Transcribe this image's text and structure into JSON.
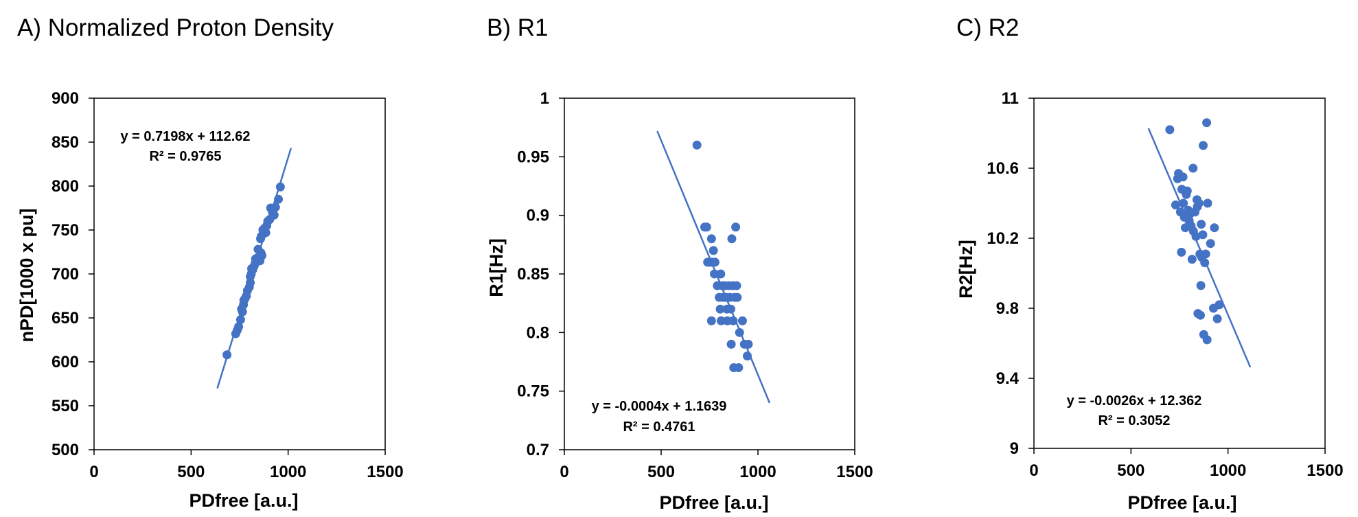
{
  "chart_data": [
    {
      "type": "scatter",
      "title": "A) Normalized Proton Density",
      "xlabel": "PDfree [a.u.]",
      "ylabel": "nPD[1000 x pu]",
      "xlim": [
        0,
        1500
      ],
      "ylim": [
        500,
        900
      ],
      "xticks": [
        "0",
        "500",
        "1000",
        "1500"
      ],
      "yticks": [
        "500",
        "550",
        "600",
        "650",
        "700",
        "750",
        "800",
        "850",
        "900"
      ],
      "marker_color": "#4472C4",
      "trendline": {
        "slope": 0.7198,
        "intercept": 112.62,
        "x_range": [
          635,
          1015
        ]
      },
      "equation": "y = 0.7198x + 112.62",
      "r_squared": "R² = 0.9765",
      "grid": false,
      "points": [
        [
          685,
          608
        ],
        [
          730,
          632
        ],
        [
          738,
          636
        ],
        [
          745,
          640
        ],
        [
          755,
          648
        ],
        [
          760,
          660
        ],
        [
          765,
          657
        ],
        [
          770,
          665
        ],
        [
          772,
          670
        ],
        [
          778,
          672
        ],
        [
          785,
          675
        ],
        [
          790,
          681
        ],
        [
          800,
          685
        ],
        [
          805,
          690
        ],
        [
          805,
          697
        ],
        [
          810,
          700
        ],
        [
          812,
          706
        ],
        [
          818,
          705
        ],
        [
          825,
          709
        ],
        [
          830,
          712
        ],
        [
          832,
          717
        ],
        [
          838,
          718
        ],
        [
          845,
          728
        ],
        [
          850,
          718
        ],
        [
          855,
          715
        ],
        [
          860,
          724
        ],
        [
          865,
          721
        ],
        [
          858,
          740
        ],
        [
          862,
          743
        ],
        [
          870,
          750
        ],
        [
          878,
          752
        ],
        [
          885,
          747
        ],
        [
          890,
          755
        ],
        [
          895,
          760
        ],
        [
          905,
          762
        ],
        [
          910,
          775
        ],
        [
          920,
          770
        ],
        [
          928,
          767
        ],
        [
          935,
          776
        ],
        [
          950,
          785
        ],
        [
          960,
          799
        ]
      ]
    },
    {
      "type": "scatter",
      "title": "B) R1",
      "xlabel": "PDfree [a.u.]",
      "ylabel": "R1[Hz]",
      "xlim": [
        0,
        1500
      ],
      "ylim": [
        0.7,
        1
      ],
      "xticks": [
        "0",
        "500",
        "1000",
        "1500"
      ],
      "yticks": [
        "0.7",
        "0.75",
        "0.8",
        "0.85",
        "0.9",
        "0.95",
        "1"
      ],
      "marker_color": "#4472C4",
      "trendline": {
        "slope": -0.0004,
        "intercept": 1.1639,
        "x_range": [
          480,
          1060
        ]
      },
      "equation": "y = -0.0004x + 1.1639",
      "r_squared": "R² = 0.4761",
      "grid": false,
      "points": [
        [
          685,
          0.96
        ],
        [
          725,
          0.89
        ],
        [
          735,
          0.89
        ],
        [
          740,
          0.86
        ],
        [
          750,
          0.86
        ],
        [
          760,
          0.88
        ],
        [
          762,
          0.86
        ],
        [
          770,
          0.87
        ],
        [
          775,
          0.85
        ],
        [
          778,
          0.86
        ],
        [
          760,
          0.81
        ],
        [
          790,
          0.84
        ],
        [
          800,
          0.83
        ],
        [
          805,
          0.82
        ],
        [
          808,
          0.85
        ],
        [
          810,
          0.81
        ],
        [
          815,
          0.84
        ],
        [
          820,
          0.83
        ],
        [
          830,
          0.84
        ],
        [
          835,
          0.83
        ],
        [
          840,
          0.82
        ],
        [
          842,
          0.81
        ],
        [
          850,
          0.84
        ],
        [
          855,
          0.83
        ],
        [
          860,
          0.82
        ],
        [
          862,
          0.79
        ],
        [
          865,
          0.88
        ],
        [
          870,
          0.84
        ],
        [
          872,
          0.81
        ],
        [
          875,
          0.77
        ],
        [
          880,
          0.83
        ],
        [
          885,
          0.89
        ],
        [
          890,
          0.84
        ],
        [
          893,
          0.83
        ],
        [
          900,
          0.77
        ],
        [
          905,
          0.8
        ],
        [
          920,
          0.81
        ],
        [
          930,
          0.79
        ],
        [
          945,
          0.78
        ],
        [
          950,
          0.79
        ]
      ]
    },
    {
      "type": "scatter",
      "title": "C) R2",
      "xlabel": "PDfree [a.u.]",
      "ylabel": "R2[Hz]",
      "xlim": [
        0,
        1500
      ],
      "ylim": [
        9,
        11
      ],
      "xticks": [
        "0",
        "500",
        "1000",
        "1500"
      ],
      "yticks": [
        "9",
        "9.4",
        "9.8",
        "10.2",
        "10.6",
        "11"
      ],
      "marker_color": "#4472C4",
      "trendline": {
        "slope": -0.0026,
        "intercept": 12.362,
        "x_range": [
          590,
          1115
        ]
      },
      "equation": "y = -0.0026x + 12.362",
      "r_squared": "R² = 0.3052",
      "grid": false,
      "points": [
        [
          700,
          10.82
        ],
        [
          730,
          10.39
        ],
        [
          740,
          10.54
        ],
        [
          745,
          10.57
        ],
        [
          755,
          10.35
        ],
        [
          760,
          10.12
        ],
        [
          762,
          10.48
        ],
        [
          768,
          10.55
        ],
        [
          770,
          10.4
        ],
        [
          775,
          10.32
        ],
        [
          780,
          10.26
        ],
        [
          785,
          10.45
        ],
        [
          790,
          10.47
        ],
        [
          795,
          10.36
        ],
        [
          800,
          10.3
        ],
        [
          805,
          10.34
        ],
        [
          810,
          10.27
        ],
        [
          815,
          10.08
        ],
        [
          820,
          10.6
        ],
        [
          822,
          10.24
        ],
        [
          830,
          10.35
        ],
        [
          835,
          10.21
        ],
        [
          840,
          10.42
        ],
        [
          842,
          10.38
        ],
        [
          845,
          9.77
        ],
        [
          850,
          10.4
        ],
        [
          855,
          10.11
        ],
        [
          858,
          9.76
        ],
        [
          860,
          9.93
        ],
        [
          862,
          10.28
        ],
        [
          865,
          10.09
        ],
        [
          870,
          10.22
        ],
        [
          872,
          10.73
        ],
        [
          875,
          9.65
        ],
        [
          880,
          10.06
        ],
        [
          885,
          10.11
        ],
        [
          890,
          10.86
        ],
        [
          892,
          9.62
        ],
        [
          895,
          10.4
        ],
        [
          910,
          10.17
        ],
        [
          925,
          9.8
        ],
        [
          930,
          10.26
        ],
        [
          945,
          9.74
        ],
        [
          955,
          9.82
        ]
      ]
    }
  ]
}
